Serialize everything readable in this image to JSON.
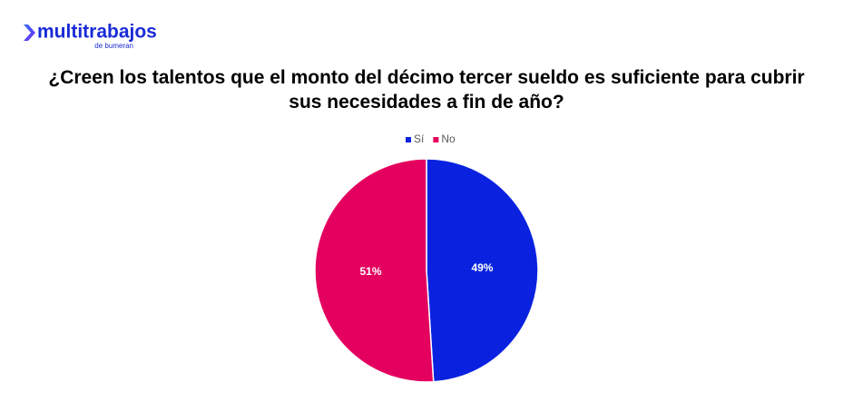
{
  "logo": {
    "name": "multitrabajos",
    "tagline": "de bumeran"
  },
  "chart_data": {
    "type": "pie",
    "title": "¿Creen los talentos que el monto del décimo tercer sueldo es suficiente para cubrir sus necesidades a fin de año?",
    "categories": [
      "Sí",
      "No"
    ],
    "values": [
      49,
      51
    ],
    "value_labels": [
      "49%",
      "51%"
    ],
    "colors": [
      "#0a22e0",
      "#e4005e"
    ],
    "legend": "top"
  }
}
